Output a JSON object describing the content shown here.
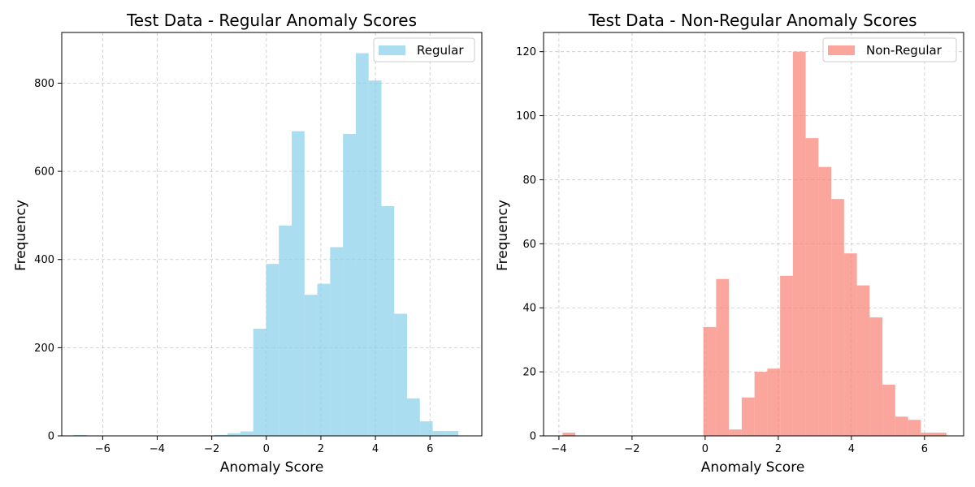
{
  "chart_data": [
    {
      "type": "bar",
      "title": "Test Data - Regular Anomaly Scores",
      "xlabel": "Anomaly Score",
      "ylabel": "Frequency",
      "xlim": [
        -7.5,
        7.9
      ],
      "ylim": [
        0,
        915
      ],
      "xticks": [
        -6,
        -4,
        -2,
        0,
        2,
        4,
        6
      ],
      "yticks": [
        0,
        200,
        400,
        600,
        800
      ],
      "grid": true,
      "legend_position": "top-right",
      "color": "#87CEEB",
      "series": [
        {
          "name": "Regular",
          "bin_edges": [
            -7.06,
            -6.59,
            -6.12,
            -5.65,
            -5.18,
            -4.71,
            -4.24,
            -3.77,
            -3.3,
            -2.83,
            -2.36,
            -1.89,
            -1.42,
            -0.95,
            -0.48,
            -0.01,
            0.46,
            0.93,
            1.4,
            1.87,
            2.34,
            2.81,
            3.28,
            3.75,
            4.22,
            4.69,
            5.16,
            5.63,
            6.1,
            6.57,
            7.04
          ],
          "counts": [
            2,
            0,
            0,
            0,
            0,
            0,
            0,
            0,
            0,
            0,
            1,
            2,
            6,
            10,
            243,
            390,
            477,
            691,
            320,
            345,
            428,
            685,
            868,
            806,
            521,
            277,
            85,
            33,
            11,
            11
          ]
        }
      ]
    },
    {
      "type": "bar",
      "title": "Test Data - Non-Regular Anomaly Scores",
      "xlabel": "Anomaly Score",
      "ylabel": "Frequency",
      "xlim": [
        -4.42,
        7.07
      ],
      "ylim": [
        0,
        126
      ],
      "xticks": [
        -4,
        -2,
        0,
        2,
        4,
        6
      ],
      "yticks": [
        0,
        20,
        40,
        60,
        80,
        100,
        120
      ],
      "grid": true,
      "legend_position": "top-right",
      "color": "#FA8072",
      "series": [
        {
          "name": "Non-Regular",
          "bin_edges": [
            -3.9,
            -3.55,
            -3.2,
            -2.85,
            -2.5,
            -2.15,
            -1.8,
            -1.45,
            -1.1,
            -0.75,
            -0.4,
            -0.05,
            0.3,
            0.65,
            1.0,
            1.35,
            1.7,
            2.05,
            2.4,
            2.75,
            3.1,
            3.45,
            3.8,
            4.15,
            4.5,
            4.85,
            5.2,
            5.55,
            5.9,
            6.25,
            6.6
          ],
          "counts": [
            1,
            0,
            0,
            0,
            0,
            0,
            0,
            0,
            0,
            0,
            0,
            34,
            49,
            2,
            12,
            20,
            21,
            50,
            120,
            93,
            84,
            74,
            57,
            47,
            37,
            16,
            6,
            5,
            1,
            1
          ]
        }
      ]
    }
  ]
}
